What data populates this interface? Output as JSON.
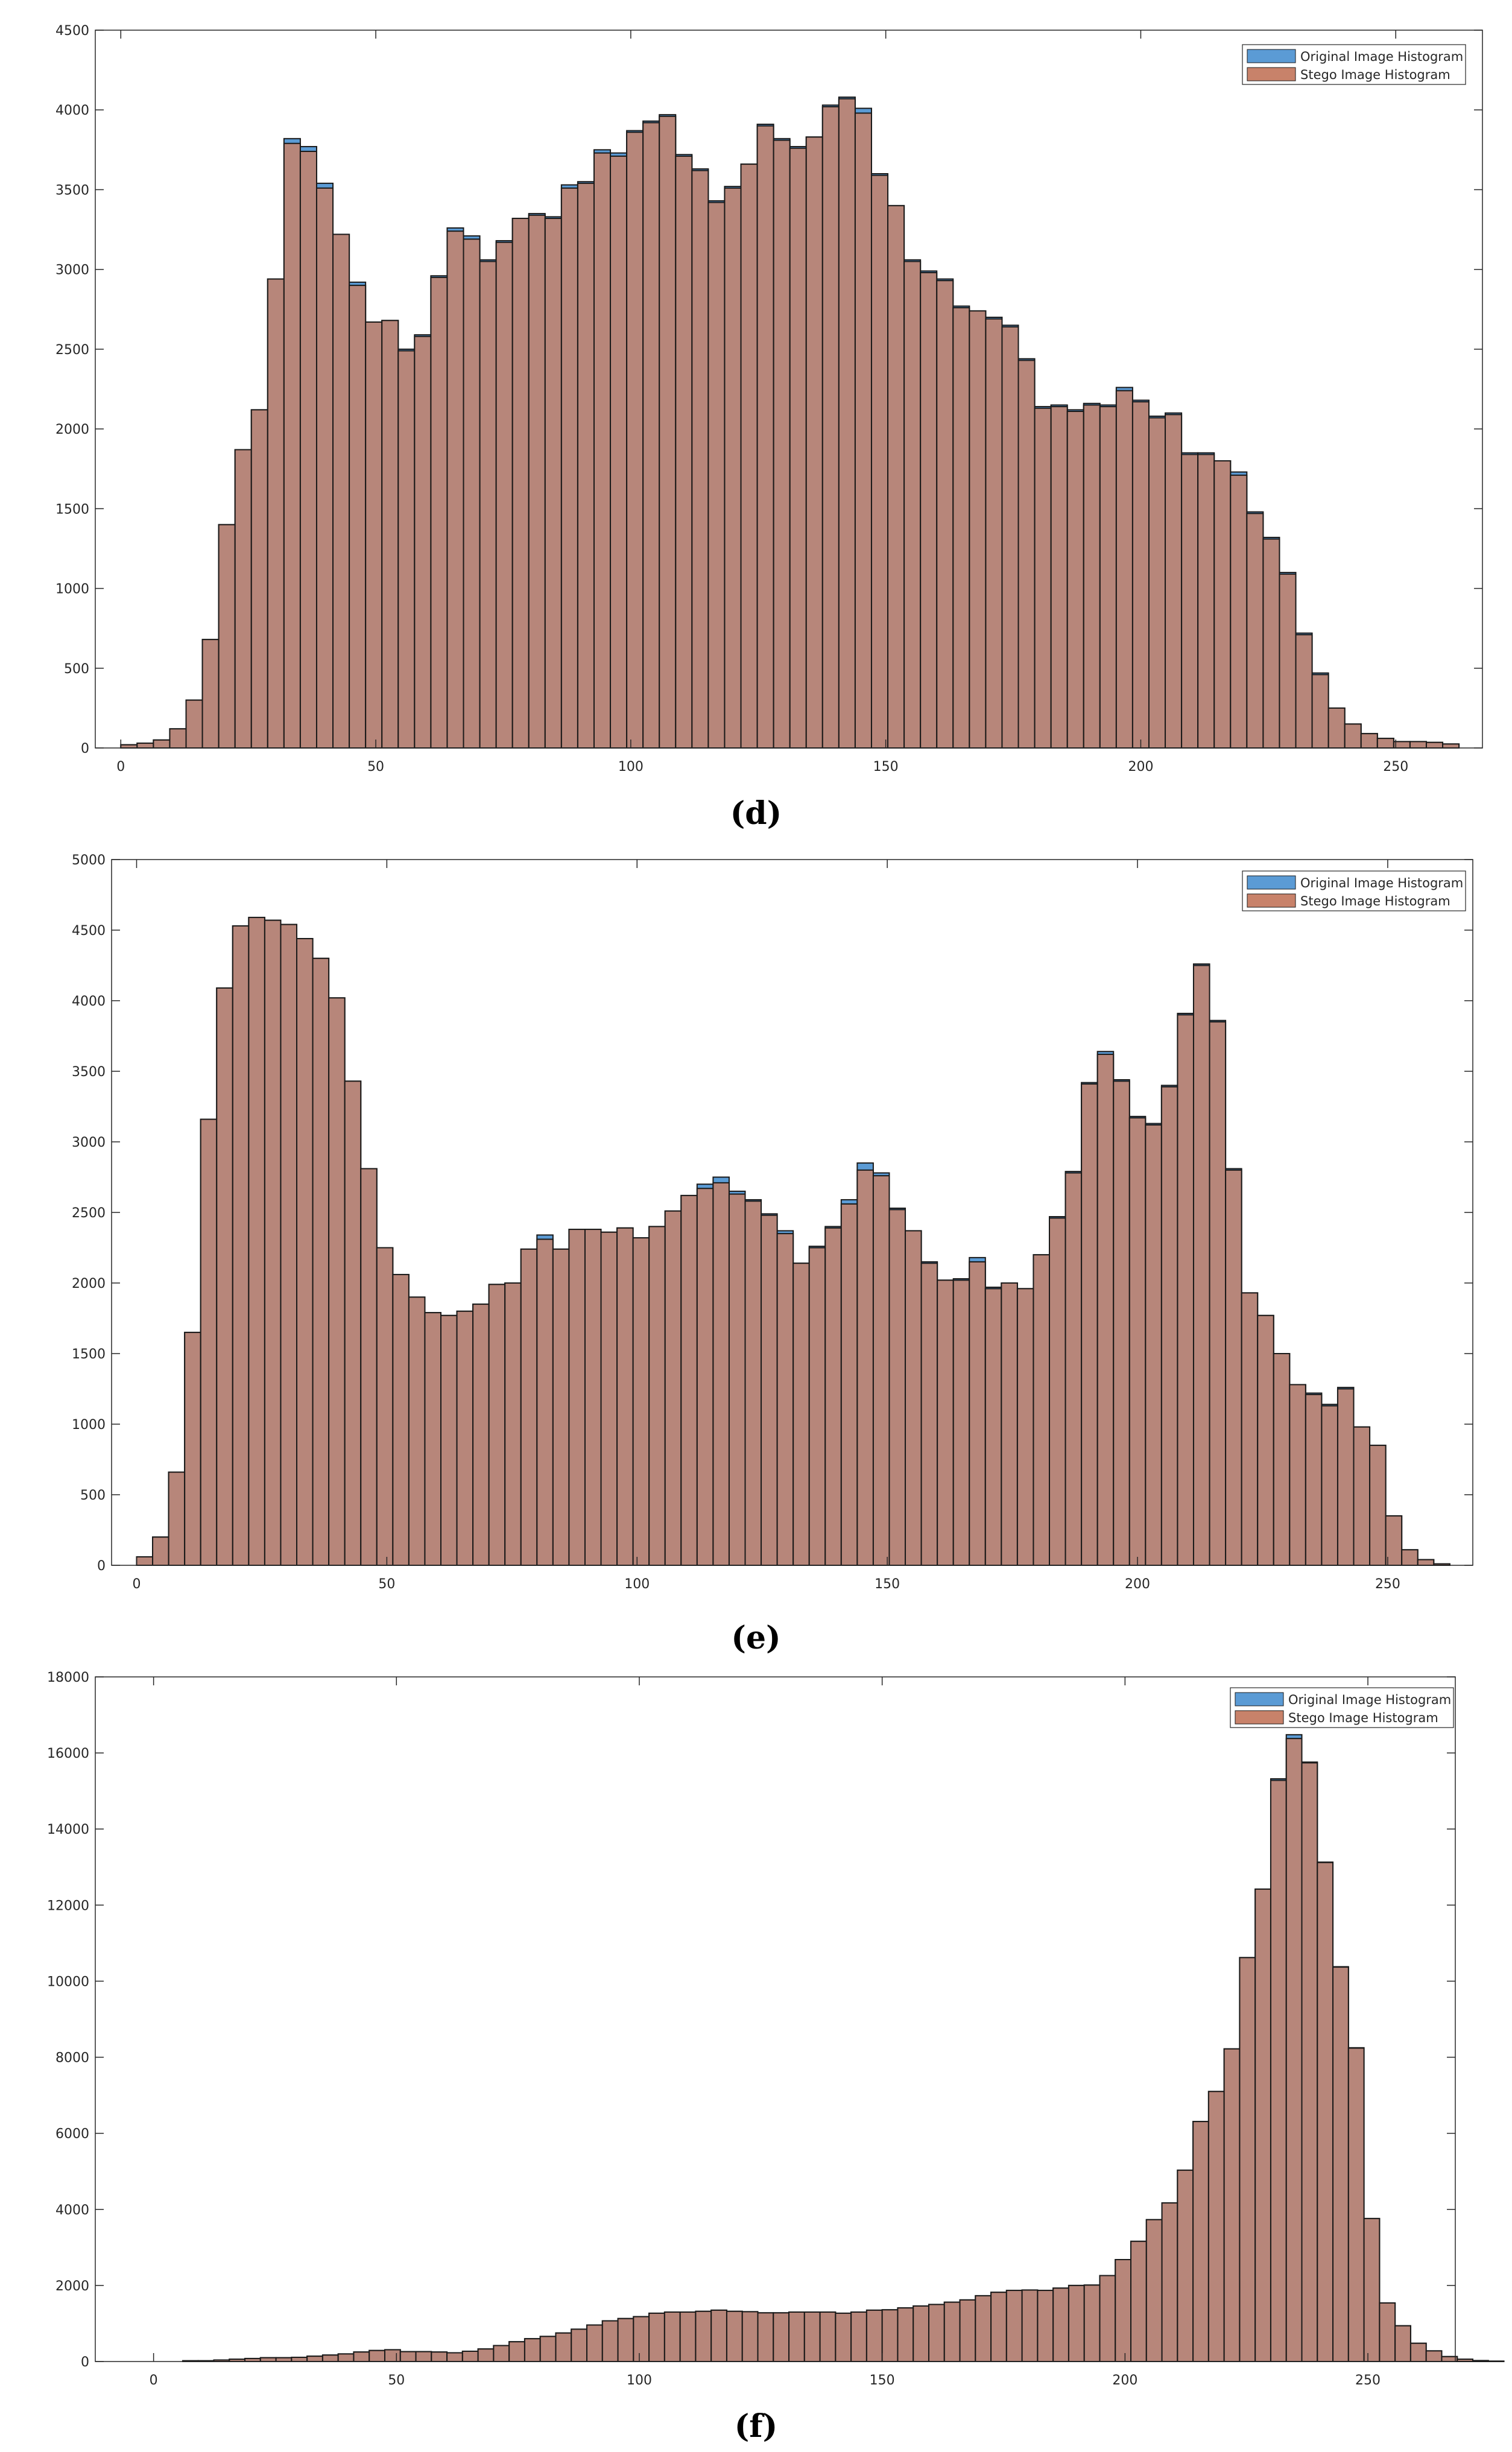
{
  "chart_data": [
    {
      "type": "bar",
      "caption": "(d)",
      "legend": [
        "Original Image Histogram",
        "Stego Image Histogram"
      ],
      "legend_position": "top-right",
      "colors": {
        "original": "#5b9bd5",
        "stego": "#c8826a",
        "outline": "#1a1a1a"
      },
      "xlim": [
        -5,
        267
      ],
      "ylim": [
        0,
        4500
      ],
      "xticks": [
        0,
        50,
        100,
        150,
        200,
        250
      ],
      "yticks": [
        0,
        500,
        1000,
        1500,
        2000,
        2500,
        3000,
        3500,
        4000,
        4500
      ],
      "bin_width": 3.2,
      "bin_start": 0,
      "original": [
        20,
        30,
        50,
        120,
        300,
        680,
        1400,
        1870,
        2120,
        2940,
        3820,
        3770,
        3540,
        3220,
        2920,
        2670,
        2680,
        2500,
        2590,
        2960,
        3260,
        3210,
        3060,
        3180,
        3320,
        3350,
        3330,
        3530,
        3550,
        3750,
        3730,
        3870,
        3930,
        3970,
        3720,
        3630,
        3430,
        3520,
        3660,
        3910,
        3820,
        3770,
        3830,
        4030,
        4080,
        4010,
        3600,
        3400,
        3060,
        2990,
        2940,
        2770,
        2740,
        2700,
        2650,
        2440,
        2140,
        2150,
        2120,
        2160,
        2150,
        2260,
        2180,
        2080,
        2100,
        1850,
        1850,
        1800,
        1730,
        1480,
        1320,
        1100,
        720,
        470,
        250,
        150,
        90,
        60,
        40,
        40,
        35,
        25
      ],
      "stego": [
        20,
        30,
        50,
        120,
        300,
        680,
        1400,
        1870,
        2120,
        2940,
        3790,
        3740,
        3510,
        3220,
        2900,
        2670,
        2680,
        2490,
        2580,
        2950,
        3240,
        3190,
        3050,
        3170,
        3320,
        3340,
        3320,
        3510,
        3540,
        3730,
        3710,
        3860,
        3920,
        3960,
        3710,
        3620,
        3420,
        3510,
        3660,
        3900,
        3810,
        3760,
        3830,
        4020,
        4070,
        3980,
        3590,
        3400,
        3050,
        2980,
        2930,
        2760,
        2740,
        2690,
        2640,
        2430,
        2130,
        2140,
        2110,
        2150,
        2140,
        2240,
        2170,
        2070,
        2090,
        1840,
        1840,
        1800,
        1710,
        1470,
        1310,
        1090,
        710,
        460,
        250,
        150,
        90,
        60,
        40,
        40,
        35,
        25
      ]
    },
    {
      "type": "bar",
      "caption": "(e)",
      "legend": [
        "Original Image Histogram",
        "Stego Image Histogram"
      ],
      "legend_position": "top-right",
      "colors": {
        "original": "#5b9bd5",
        "stego": "#c8826a",
        "outline": "#1a1a1a"
      },
      "xlim": [
        -5,
        267
      ],
      "ylim": [
        0,
        5000
      ],
      "xticks": [
        0,
        50,
        100,
        150,
        200,
        250
      ],
      "yticks": [
        0,
        500,
        1000,
        1500,
        2000,
        2500,
        3000,
        3500,
        4000,
        4500,
        5000
      ],
      "bin_width": 3.2,
      "bin_start": 0,
      "original": [
        60,
        200,
        660,
        1650,
        3160,
        4090,
        4530,
        4590,
        4570,
        4540,
        4440,
        4300,
        4020,
        3430,
        2810,
        2250,
        2060,
        1900,
        1790,
        1770,
        1800,
        1850,
        1990,
        2000,
        2240,
        2340,
        2240,
        2380,
        2380,
        2360,
        2390,
        2320,
        2400,
        2510,
        2620,
        2700,
        2750,
        2650,
        2590,
        2490,
        2370,
        2140,
        2260,
        2400,
        2590,
        2850,
        2780,
        2530,
        2370,
        2150,
        2020,
        2030,
        2180,
        1970,
        2000,
        1960,
        2200,
        2470,
        2790,
        3420,
        3640,
        3440,
        3180,
        3130,
        3400,
        3910,
        4260,
        3860,
        2810,
        1930,
        1770,
        1500,
        1280,
        1220,
        1140,
        1260,
        980,
        850,
        350,
        110,
        40,
        10
      ],
      "stego": [
        60,
        200,
        660,
        1650,
        3160,
        4090,
        4530,
        4590,
        4570,
        4540,
        4440,
        4300,
        4020,
        3430,
        2810,
        2250,
        2060,
        1900,
        1790,
        1770,
        1800,
        1850,
        1990,
        2000,
        2240,
        2310,
        2240,
        2380,
        2380,
        2360,
        2390,
        2320,
        2400,
        2510,
        2620,
        2670,
        2710,
        2630,
        2580,
        2480,
        2350,
        2140,
        2250,
        2390,
        2560,
        2800,
        2760,
        2520,
        2370,
        2140,
        2020,
        2020,
        2150,
        1960,
        2000,
        1960,
        2200,
        2460,
        2780,
        3410,
        3620,
        3430,
        3170,
        3120,
        3390,
        3900,
        4250,
        3850,
        2800,
        1930,
        1770,
        1500,
        1280,
        1210,
        1130,
        1250,
        980,
        850,
        350,
        110,
        40,
        10
      ]
    },
    {
      "type": "bar",
      "caption": "(f)",
      "legend": [
        "Original Image Histogram",
        "Stego Image Histogram"
      ],
      "legend_position": "top-right",
      "colors": {
        "original": "#5b9bd5",
        "stego": "#c8826a",
        "outline": "#1a1a1a"
      },
      "xlim": [
        -12,
        268
      ],
      "ylim": [
        0,
        18000
      ],
      "xticks": [
        0,
        50,
        100,
        150,
        200,
        250
      ],
      "yticks": [
        0,
        2000,
        4000,
        6000,
        8000,
        10000,
        12000,
        14000,
        16000,
        18000
      ],
      "bin_width": 3.2,
      "bin_start": 6,
      "original": [
        20,
        20,
        40,
        60,
        80,
        100,
        100,
        110,
        140,
        170,
        200,
        250,
        290,
        310,
        260,
        260,
        250,
        230,
        270,
        330,
        420,
        520,
        600,
        660,
        750,
        850,
        960,
        1070,
        1130,
        1180,
        1270,
        1300,
        1300,
        1320,
        1350,
        1320,
        1310,
        1280,
        1280,
        1300,
        1300,
        1300,
        1270,
        1300,
        1350,
        1360,
        1410,
        1460,
        1500,
        1560,
        1620,
        1730,
        1820,
        1870,
        1880,
        1870,
        1930,
        2000,
        2010,
        2260,
        2680,
        3160,
        3730,
        4170,
        5030,
        6310,
        7100,
        8220,
        10620,
        12420,
        15320,
        16480,
        15760,
        13130,
        10380,
        8250,
        3760,
        1540,
        940,
        480,
        280,
        130,
        60,
        25,
        10
      ],
      "stego": [
        20,
        20,
        40,
        60,
        80,
        100,
        100,
        110,
        140,
        170,
        200,
        250,
        290,
        310,
        260,
        260,
        250,
        230,
        270,
        330,
        420,
        520,
        600,
        660,
        750,
        850,
        960,
        1070,
        1130,
        1180,
        1270,
        1300,
        1300,
        1320,
        1350,
        1320,
        1310,
        1280,
        1280,
        1300,
        1300,
        1300,
        1270,
        1300,
        1350,
        1360,
        1410,
        1460,
        1500,
        1560,
        1620,
        1730,
        1820,
        1870,
        1880,
        1870,
        1930,
        2000,
        2010,
        2260,
        2680,
        3160,
        3730,
        4170,
        5030,
        6310,
        7100,
        8220,
        10620,
        12420,
        15280,
        16380,
        15740,
        13120,
        10370,
        8240,
        3760,
        1540,
        940,
        480,
        280,
        130,
        60,
        25,
        10
      ]
    }
  ]
}
